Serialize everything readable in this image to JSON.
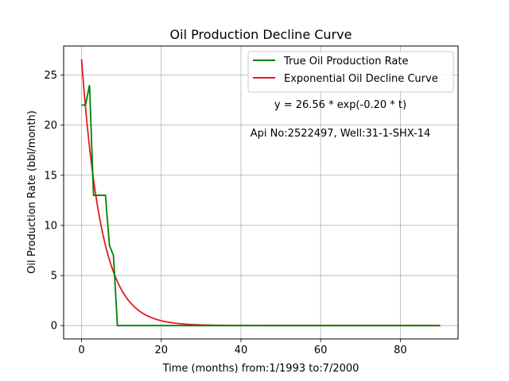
{
  "chart_data": {
    "type": "line",
    "title": "Oil Production Decline Curve",
    "xlabel": "Time (months) from:1/1993 to:7/2000",
    "ylabel": "Oil Production Rate (bbl/month)",
    "xlim": [
      -4.5,
      94.5
    ],
    "ylim": [
      -1.33,
      27.89
    ],
    "xticks": [
      0,
      20,
      40,
      60,
      80
    ],
    "yticks": [
      0,
      5,
      10,
      15,
      20,
      25
    ],
    "grid": true,
    "legend_position": "upper-right",
    "series": [
      {
        "name": "True Oil Production Rate",
        "color": "#008000",
        "style": "step-data",
        "x": [
          0,
          1,
          2,
          3,
          4,
          5,
          6,
          7,
          8,
          9,
          10,
          20,
          30,
          40,
          50,
          60,
          70,
          80,
          90
        ],
        "y": [
          22,
          22,
          24,
          13,
          13,
          13,
          13,
          8,
          7,
          0,
          0,
          0,
          0,
          0,
          0,
          0,
          0,
          0,
          0
        ]
      },
      {
        "name": "Exponential Oil Decline Curve",
        "color": "#e41a1c",
        "style": "fit",
        "a": 26.56,
        "b": 0.2,
        "x_range": [
          0,
          90
        ]
      }
    ],
    "annotations": [
      {
        "text": "y = 26.56 * exp(-0.20 * t)"
      },
      {
        "text": "Api No:2522497, Well:31-1-SHX-14"
      }
    ]
  }
}
